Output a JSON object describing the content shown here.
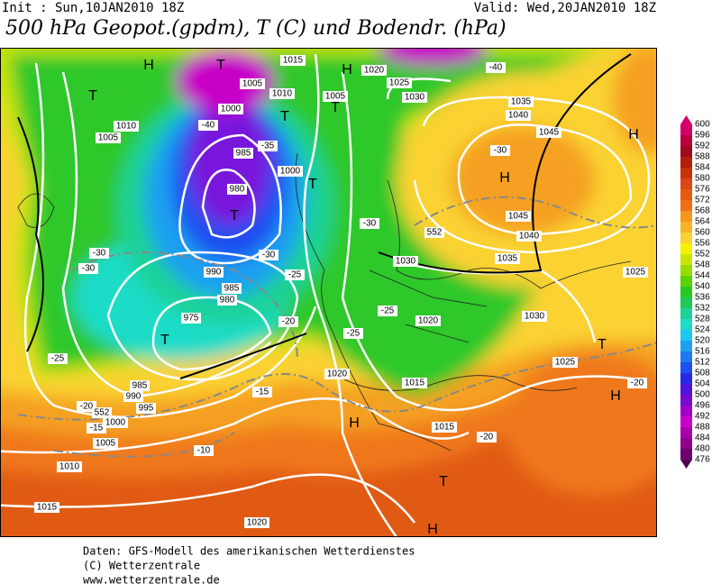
{
  "header": {
    "init": "Init : Sun,10JAN2010 18Z",
    "valid": "Valid: Wed,20JAN2010 18Z",
    "title": "500 hPa Geopot.(gpdm), T (C) und Bodendr. (hPa)"
  },
  "colorbar": {
    "ticks": [
      600,
      596,
      592,
      588,
      584,
      580,
      576,
      572,
      568,
      564,
      560,
      556,
      552,
      548,
      544,
      540,
      536,
      532,
      528,
      524,
      520,
      516,
      512,
      508,
      504,
      500,
      496,
      492,
      488,
      484,
      480,
      476
    ],
    "colors": [
      "#d4006a",
      "#b8003a",
      "#a00a1e",
      "#b41e0a",
      "#c8320a",
      "#dc4614",
      "#e65a14",
      "#f06e14",
      "#f5961e",
      "#fab428",
      "#fad232",
      "#f5f000",
      "#c8e600",
      "#96dc00",
      "#5ad200",
      "#28c81e",
      "#1ec85a",
      "#1ed296",
      "#1edcc8",
      "#1ec8f0",
      "#1ea0f0",
      "#1e78f0",
      "#1e50f0",
      "#2828e6",
      "#5014dc",
      "#780ad2",
      "#a000c8",
      "#c800c8",
      "#aa00aa",
      "#8c008c",
      "#6e006e",
      "#500050"
    ]
  },
  "map": {
    "labels": [
      "H",
      "H",
      "H",
      "H",
      "H",
      "H",
      "H",
      "T",
      "T",
      "T",
      "T",
      "T",
      "T",
      "T",
      "T",
      "T",
      "1015",
      "1010",
      "1005",
      "1020",
      "1025",
      "1030",
      "1035",
      "1040",
      "1045",
      "1045",
      "1040",
      "1035",
      "1030",
      "1030",
      "1025",
      "1025",
      "1020",
      "1020",
      "1015",
      "1015",
      "1020",
      "1015",
      "1010",
      "1005",
      "1000",
      "995",
      "990",
      "985",
      "975",
      "980",
      "985",
      "990",
      "980",
      "985",
      "1000",
      "1005",
      "1010",
      "1005",
      "1000",
      "-40",
      "-35",
      "-30",
      "-25",
      "-20",
      "-15",
      "-10",
      "-15",
      "-20",
      "-25",
      "-30",
      "-30",
      "-30",
      "-25",
      "-25",
      "-20",
      "-20",
      "-30",
      "-40",
      "552",
      "552"
    ]
  },
  "footer": {
    "lines": [
      "Daten: GFS-Modell des amerikanischen Wetterdienstes",
      "(C) Wetterzentrale",
      "www.wetterzentrale.de"
    ]
  }
}
